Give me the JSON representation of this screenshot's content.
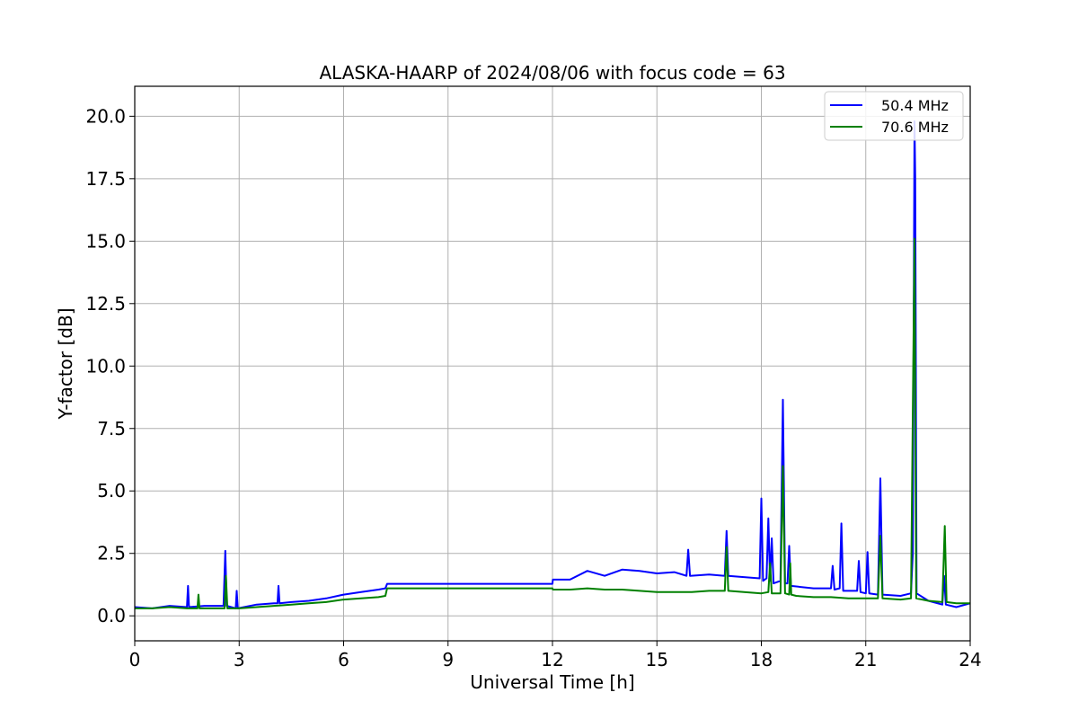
{
  "chart_data": {
    "type": "line",
    "title": "ALASKA-HAARP of 2024/08/06 with focus code = 63",
    "xlabel": "Universal Time [h]",
    "ylabel": "Y-factor [dB]",
    "xlim": [
      0,
      24
    ],
    "ylim": [
      -1.0,
      21.2
    ],
    "xticks": [
      0,
      3,
      6,
      9,
      12,
      15,
      18,
      21,
      24
    ],
    "xtick_labels": [
      "0",
      "3",
      "6",
      "9",
      "12",
      "15",
      "18",
      "21",
      "24"
    ],
    "yticks": [
      0.0,
      2.5,
      5.0,
      7.5,
      10.0,
      12.5,
      15.0,
      17.5,
      20.0
    ],
    "ytick_labels": [
      "0.0",
      "2.5",
      "5.0",
      "7.5",
      "10.0",
      "12.5",
      "15.0",
      "17.5",
      "20.0"
    ],
    "grid": true,
    "legend_position": "top-right",
    "series": [
      {
        "name": "50.4 MHz",
        "color": "#0000ff",
        "points": [
          [
            0,
            0.35
          ],
          [
            0.5,
            0.3
          ],
          [
            1.0,
            0.4
          ],
          [
            1.5,
            0.35
          ],
          [
            1.53,
            1.2
          ],
          [
            1.56,
            0.35
          ],
          [
            2.0,
            0.4
          ],
          [
            2.55,
            0.4
          ],
          [
            2.6,
            2.6
          ],
          [
            2.64,
            0.4
          ],
          [
            2.9,
            0.3
          ],
          [
            2.93,
            1.0
          ],
          [
            2.96,
            0.3
          ],
          [
            3.5,
            0.45
          ],
          [
            4.0,
            0.5
          ],
          [
            4.1,
            0.5
          ],
          [
            4.13,
            1.2
          ],
          [
            4.16,
            0.5
          ],
          [
            4.5,
            0.55
          ],
          [
            5.0,
            0.6
          ],
          [
            5.5,
            0.7
          ],
          [
            6.0,
            0.85
          ],
          [
            6.5,
            0.95
          ],
          [
            7.0,
            1.05
          ],
          [
            7.2,
            1.1
          ],
          [
            7.25,
            1.28
          ],
          [
            12.0,
            1.28
          ],
          [
            12.01,
            1.45
          ],
          [
            12.5,
            1.45
          ],
          [
            13.0,
            1.8
          ],
          [
            13.5,
            1.6
          ],
          [
            14.0,
            1.85
          ],
          [
            14.5,
            1.8
          ],
          [
            15.0,
            1.7
          ],
          [
            15.5,
            1.75
          ],
          [
            15.85,
            1.6
          ],
          [
            15.9,
            2.65
          ],
          [
            15.95,
            1.6
          ],
          [
            16.5,
            1.65
          ],
          [
            16.95,
            1.6
          ],
          [
            17.0,
            3.4
          ],
          [
            17.05,
            1.6
          ],
          [
            17.5,
            1.55
          ],
          [
            17.95,
            1.5
          ],
          [
            18.0,
            4.7
          ],
          [
            18.05,
            1.4
          ],
          [
            18.15,
            1.5
          ],
          [
            18.2,
            3.9
          ],
          [
            18.25,
            1.4
          ],
          [
            18.3,
            3.1
          ],
          [
            18.35,
            1.3
          ],
          [
            18.55,
            1.4
          ],
          [
            18.62,
            8.65
          ],
          [
            18.68,
            1.3
          ],
          [
            18.75,
            1.3
          ],
          [
            18.8,
            2.8
          ],
          [
            18.85,
            1.2
          ],
          [
            19.5,
            1.1
          ],
          [
            20.0,
            1.1
          ],
          [
            20.05,
            2.0
          ],
          [
            20.1,
            1.05
          ],
          [
            20.25,
            1.1
          ],
          [
            20.3,
            3.7
          ],
          [
            20.35,
            1.0
          ],
          [
            20.75,
            1.0
          ],
          [
            20.8,
            2.2
          ],
          [
            20.85,
            0.95
          ],
          [
            21.0,
            0.9
          ],
          [
            21.05,
            2.55
          ],
          [
            21.1,
            0.9
          ],
          [
            21.35,
            0.85
          ],
          [
            21.42,
            5.5
          ],
          [
            21.48,
            0.85
          ],
          [
            22.0,
            0.8
          ],
          [
            22.3,
            0.9
          ],
          [
            22.35,
            2.5
          ],
          [
            22.4,
            19.8
          ],
          [
            22.42,
            17.6
          ],
          [
            22.46,
            0.9
          ],
          [
            22.8,
            0.6
          ],
          [
            23.2,
            0.45
          ],
          [
            23.25,
            1.6
          ],
          [
            23.3,
            0.45
          ],
          [
            23.6,
            0.35
          ],
          [
            24.0,
            0.5
          ]
        ]
      },
      {
        "name": "70.6 MHz",
        "color": "#008000",
        "points": [
          [
            0,
            0.3
          ],
          [
            0.5,
            0.3
          ],
          [
            1.0,
            0.35
          ],
          [
            1.5,
            0.3
          ],
          [
            1.8,
            0.3
          ],
          [
            1.83,
            0.85
          ],
          [
            1.86,
            0.3
          ],
          [
            2.5,
            0.3
          ],
          [
            2.58,
            0.3
          ],
          [
            2.62,
            1.6
          ],
          [
            2.66,
            0.3
          ],
          [
            3.0,
            0.3
          ],
          [
            3.5,
            0.35
          ],
          [
            4.0,
            0.4
          ],
          [
            4.5,
            0.45
          ],
          [
            5.0,
            0.5
          ],
          [
            5.5,
            0.55
          ],
          [
            6.0,
            0.65
          ],
          [
            6.5,
            0.7
          ],
          [
            7.0,
            0.75
          ],
          [
            7.2,
            0.8
          ],
          [
            7.25,
            1.1
          ],
          [
            12.0,
            1.1
          ],
          [
            12.01,
            1.05
          ],
          [
            12.5,
            1.05
          ],
          [
            13.0,
            1.1
          ],
          [
            13.5,
            1.05
          ],
          [
            14.0,
            1.05
          ],
          [
            14.5,
            1.0
          ],
          [
            15.0,
            0.95
          ],
          [
            15.5,
            0.95
          ],
          [
            16.0,
            0.95
          ],
          [
            16.5,
            1.0
          ],
          [
            16.95,
            1.0
          ],
          [
            17.0,
            2.75
          ],
          [
            17.05,
            1.0
          ],
          [
            17.5,
            0.95
          ],
          [
            18.0,
            0.9
          ],
          [
            18.2,
            0.95
          ],
          [
            18.25,
            2.1
          ],
          [
            18.3,
            0.9
          ],
          [
            18.55,
            0.9
          ],
          [
            18.62,
            6.0
          ],
          [
            18.68,
            0.9
          ],
          [
            18.8,
            0.85
          ],
          [
            18.83,
            2.1
          ],
          [
            18.86,
            0.85
          ],
          [
            19.0,
            0.8
          ],
          [
            19.5,
            0.75
          ],
          [
            20.0,
            0.75
          ],
          [
            20.5,
            0.7
          ],
          [
            21.0,
            0.7
          ],
          [
            21.35,
            0.7
          ],
          [
            21.42,
            3.2
          ],
          [
            21.48,
            0.7
          ],
          [
            22.0,
            0.65
          ],
          [
            22.3,
            0.7
          ],
          [
            22.4,
            15.1
          ],
          [
            22.45,
            0.7
          ],
          [
            22.8,
            0.6
          ],
          [
            23.2,
            0.55
          ],
          [
            23.27,
            3.6
          ],
          [
            23.32,
            0.55
          ],
          [
            23.6,
            0.5
          ],
          [
            24.0,
            0.5
          ]
        ]
      }
    ]
  }
}
